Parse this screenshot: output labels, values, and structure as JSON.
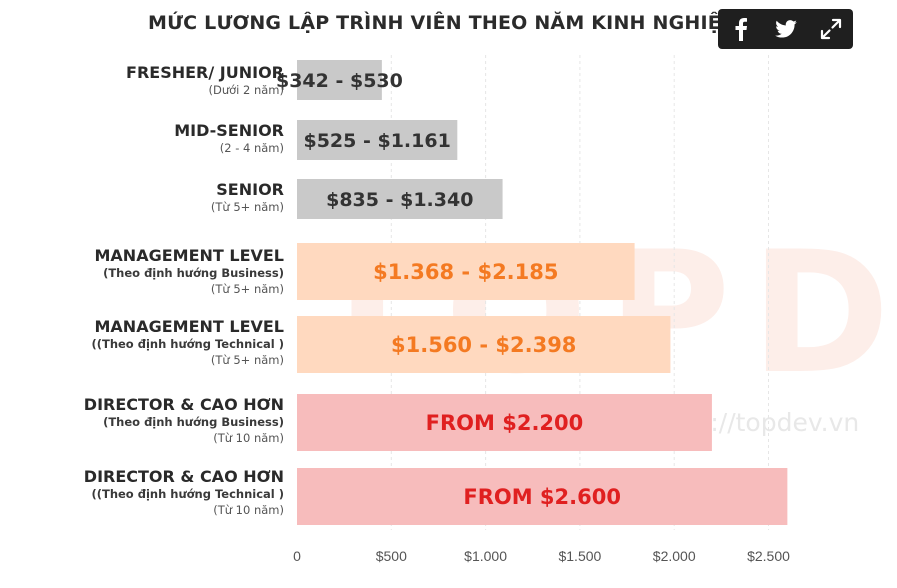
{
  "title": "MỨC LƯƠNG LẬP TRÌNH VIÊN THEO NĂM KINH NGHIỆM",
  "share": {
    "facebook_icon": "facebook-icon",
    "twitter_icon": "twitter-icon",
    "expand_icon": "expand-icon"
  },
  "watermark": {
    "logo_text": "TOPD",
    "url": "https://topdev.vn"
  },
  "colors": {
    "gray_bar": "#c9c9c9",
    "gray_text": "#333333",
    "orange_bar": "#ffd9bf",
    "orange_text": "#f47a22",
    "red_bar": "#f7bcbc",
    "red_text": "#e02020",
    "grid": "#e6e6e6"
  },
  "chart_data": {
    "type": "bar",
    "orientation": "horizontal",
    "title": "MỨC LƯƠNG LẬP TRÌNH VIÊN THEO NĂM KINH NGHIỆM",
    "xlim": [
      0,
      2700
    ],
    "xticks": [
      0,
      500,
      1000,
      1500,
      2000,
      2500
    ],
    "xtick_labels": [
      "0",
      "$500",
      "$1.000",
      "$1.500",
      "$2.000",
      "$2.500"
    ],
    "grid": "vertical dashed",
    "categories": [
      {
        "label": "FRESHER/ JUNIOR",
        "sub1": "",
        "sub2": "(Dưới 2 năm)",
        "value": 450,
        "value_label": "$342 - $530",
        "tier": "gray"
      },
      {
        "label": "MID-SENIOR",
        "sub1": "",
        "sub2": "(2 - 4 năm)",
        "value": 850,
        "value_label": "$525 - $1.161",
        "tier": "gray"
      },
      {
        "label": "SENIOR",
        "sub1": "",
        "sub2": "(Từ 5+ năm)",
        "value": 1090,
        "value_label": "$835 - $1.340",
        "tier": "gray"
      },
      {
        "label": "MANAGEMENT LEVEL",
        "sub1": "(Theo định hướng Business)",
        "sub2": "(Từ 5+ năm)",
        "value": 1790,
        "value_label": "$1.368 - $2.185",
        "tier": "orange"
      },
      {
        "label": "MANAGEMENT LEVEL",
        "sub1": "((Theo định hướng Technical )",
        "sub2": "(Từ 5+ năm)",
        "value": 1980,
        "value_label": "$1.560 - $2.398",
        "tier": "orange"
      },
      {
        "label": "DIRECTOR & CAO HƠN",
        "sub1": "(Theo định hướng Business)",
        "sub2": "(Từ 10 năm)",
        "value": 2200,
        "value_label": "FROM $2.200",
        "tier": "red"
      },
      {
        "label": "DIRECTOR & CAO HƠN",
        "sub1": "((Theo định hướng Technical )",
        "sub2": "(Từ 10 năm)",
        "value": 2600,
        "value_label": "FROM $2.600",
        "tier": "red"
      }
    ]
  }
}
